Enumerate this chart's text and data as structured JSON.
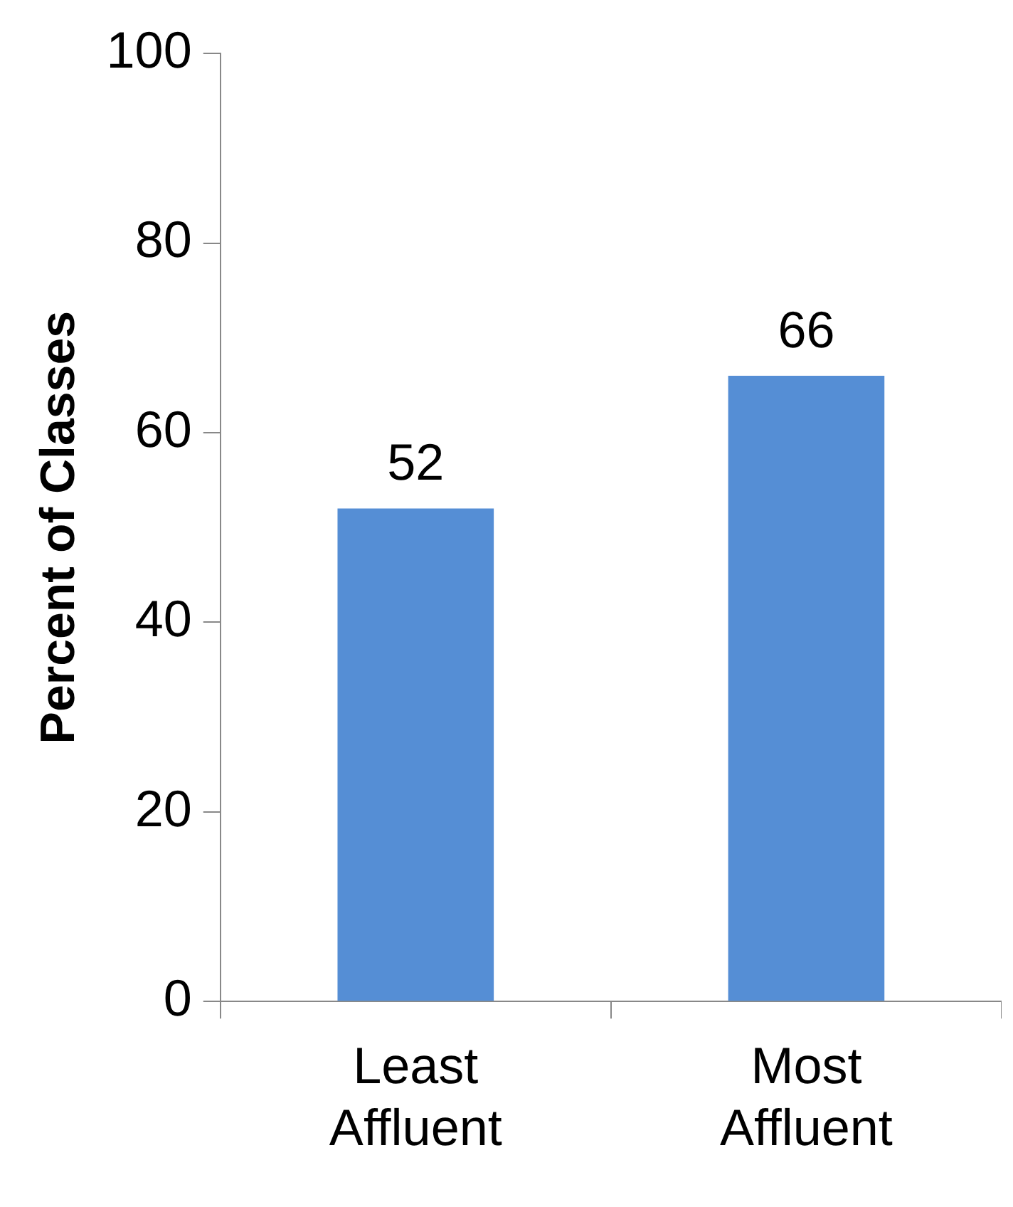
{
  "chart_data": {
    "type": "bar",
    "ylabel": "Percent of Classes",
    "categories": [
      "Least Affluent",
      "Most Affluent"
    ],
    "values": [
      52,
      66
    ],
    "color": "#558ed5",
    "ylim": [
      0,
      100
    ],
    "yticks": [
      0,
      20,
      40,
      60,
      80,
      100
    ],
    "grid": false,
    "data_labels": true
  }
}
